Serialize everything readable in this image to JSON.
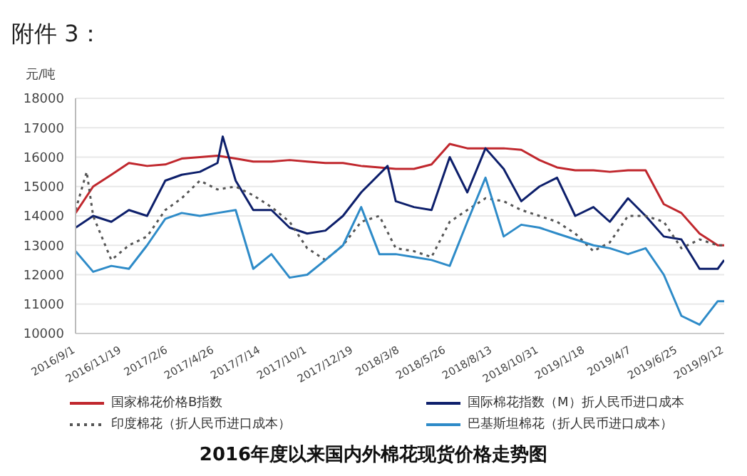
{
  "chart_data": {
    "type": "line",
    "title": "2016年度以来国内外棉花现货价格走势图",
    "ylabel": "元/吨",
    "annotations": [
      "附件 3："
    ],
    "legend": "bottom",
    "grid": "y",
    "xlim": [
      "2016-09-01",
      "2019-09-12"
    ],
    "xticks": [
      {
        "value": "2016-09-01",
        "label": "2016/9/1"
      },
      {
        "value": "2016-11-19",
        "label": "2016/11/19"
      },
      {
        "value": "2017-02-06",
        "label": "2017/2/6"
      },
      {
        "value": "2017-04-26",
        "label": "2017/4/26"
      },
      {
        "value": "2017-07-14",
        "label": "2017/7/14"
      },
      {
        "value": "2017-10-01",
        "label": "2017/10/1"
      },
      {
        "value": "2017-12-19",
        "label": "2017/12/19"
      },
      {
        "value": "2018-03-08",
        "label": "2018/3/8"
      },
      {
        "value": "2018-05-26",
        "label": "2018/5/26"
      },
      {
        "value": "2018-08-13",
        "label": "2018/8/13"
      },
      {
        "value": "2018-10-31",
        "label": "2018/10/31"
      },
      {
        "value": "2019-01-18",
        "label": "2019/1/18"
      },
      {
        "value": "2019-04-07",
        "label": "2019/4/7"
      },
      {
        "value": "2019-06-25",
        "label": "2019/6/25"
      },
      {
        "value": "2019-09-12",
        "label": "2019/9/12"
      }
    ],
    "ylim": [
      10000,
      18000
    ],
    "yticks": [
      10000,
      11000,
      12000,
      13000,
      14000,
      15000,
      16000,
      17000,
      18000
    ],
    "x": [
      "2016-09-01",
      "2016-10-01",
      "2016-11-01",
      "2016-12-01",
      "2017-01-01",
      "2017-02-01",
      "2017-03-01",
      "2017-04-01",
      "2017-05-01",
      "2017-06-01",
      "2017-07-01",
      "2017-08-01",
      "2017-09-01",
      "2017-10-01",
      "2017-11-01",
      "2017-12-01",
      "2018-01-01",
      "2018-02-01",
      "2018-03-01",
      "2018-04-01",
      "2018-05-01",
      "2018-06-01",
      "2018-07-01",
      "2018-08-01",
      "2018-09-01",
      "2018-10-01",
      "2018-11-01",
      "2018-12-01",
      "2019-01-01",
      "2019-02-01",
      "2019-03-01",
      "2019-04-01",
      "2019-05-01",
      "2019-06-01",
      "2019-07-01",
      "2019-08-01",
      "2019-09-01",
      "2019-09-12"
    ],
    "series": [
      {
        "name": "国家棉花价格B指数",
        "color": "#c0272d",
        "line_style": "solid",
        "values": [
          14100,
          15000,
          15400,
          15800,
          15700,
          15750,
          15950,
          16000,
          16050,
          15950,
          15850,
          15850,
          15900,
          15850,
          15800,
          15800,
          15700,
          15650,
          15600,
          15600,
          15750,
          16450,
          16300,
          16300,
          16300,
          16250,
          15900,
          15650,
          15550,
          15550,
          15500,
          15550,
          15550,
          14400,
          14100,
          13400,
          13000,
          13000
        ]
      },
      {
        "name": "国际棉花指数（M）折人民币进口成本",
        "color": "#0d1f6b",
        "line_style": "solid",
        "x": [
          "2016-09-01",
          "2016-10-01",
          "2016-11-01",
          "2016-12-01",
          "2017-01-01",
          "2017-02-01",
          "2017-03-01",
          "2017-04-01",
          "2017-05-01",
          "2017-05-10",
          "2017-06-01",
          "2017-07-01",
          "2017-08-01",
          "2017-09-01",
          "2017-10-01",
          "2017-11-01",
          "2017-12-01",
          "2018-01-01",
          "2018-02-15",
          "2018-03-01",
          "2018-04-01",
          "2018-05-01",
          "2018-06-01",
          "2018-07-01",
          "2018-08-01",
          "2018-09-01",
          "2018-10-01",
          "2018-11-01",
          "2018-12-01",
          "2019-01-01",
          "2019-02-01",
          "2019-03-01",
          "2019-04-01",
          "2019-05-01",
          "2019-06-01",
          "2019-07-01",
          "2019-08-01",
          "2019-09-01",
          "2019-09-12"
        ],
        "values": [
          13600,
          14000,
          13800,
          14200,
          14000,
          15200,
          15400,
          15500,
          15800,
          16700,
          15200,
          14200,
          14200,
          13600,
          13400,
          13500,
          14000,
          14800,
          15700,
          14500,
          14300,
          14200,
          16000,
          14800,
          16300,
          15600,
          14500,
          15000,
          15300,
          14000,
          14300,
          13800,
          14600,
          14000,
          13300,
          13200,
          12200,
          12200,
          12500
        ]
      },
      {
        "name": "印度棉花（折人民币进口成本）",
        "color": "#555555",
        "line_style": "dotted",
        "x": [
          "2016-09-01",
          "2016-09-20",
          "2016-10-01",
          "2016-11-01",
          "2016-12-01",
          "2017-01-01",
          "2017-02-01",
          "2017-03-01",
          "2017-04-01",
          "2017-05-01",
          "2017-06-01",
          "2017-07-01",
          "2017-08-01",
          "2017-09-01",
          "2017-10-01",
          "2017-11-01",
          "2017-12-01",
          "2018-01-01",
          "2018-02-01",
          "2018-03-01",
          "2018-04-01",
          "2018-05-01",
          "2018-06-01",
          "2018-07-01",
          "2018-08-01",
          "2018-09-01",
          "2018-10-01",
          "2018-11-01",
          "2018-12-01",
          "2019-01-01",
          "2019-02-01",
          "2019-03-01",
          "2019-04-01",
          "2019-05-01",
          "2019-06-01",
          "2019-07-01",
          "2019-08-01",
          "2019-09-01",
          "2019-09-12"
        ],
        "values": [
          14200,
          15500,
          14000,
          12500,
          13000,
          13300,
          14200,
          14600,
          15200,
          14900,
          15000,
          14700,
          14300,
          13800,
          12900,
          12500,
          13000,
          13800,
          14000,
          12900,
          12800,
          12600,
          13800,
          14200,
          14600,
          14500,
          14200,
          14000,
          13800,
          13400,
          12800,
          13100,
          14000,
          14000,
          13800,
          12900,
          13200,
          13000,
          13000
        ]
      },
      {
        "name": "巴基斯坦棉花（折人民币进口成本）",
        "color": "#2e8bc8",
        "line_style": "solid",
        "values": [
          12800,
          12100,
          12300,
          12200,
          13000,
          13900,
          14100,
          14000,
          14100,
          14200,
          12200,
          12700,
          11900,
          12000,
          12500,
          13000,
          14300,
          12700,
          12700,
          12600,
          12500,
          12300,
          13800,
          15300,
          13300,
          13700,
          13600,
          13400,
          13200,
          13000,
          12900,
          12700,
          12900,
          12000,
          10600,
          10300,
          11100,
          11100
        ]
      }
    ]
  }
}
